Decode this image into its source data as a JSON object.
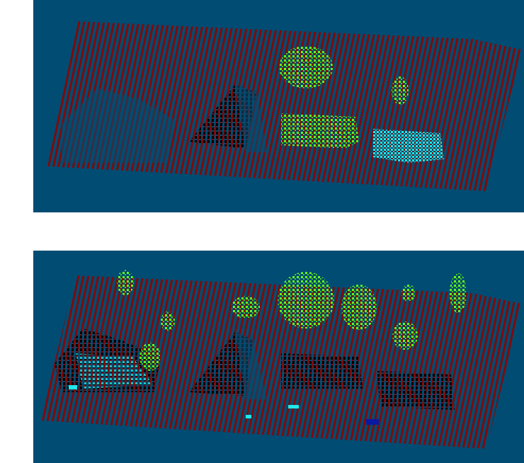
{
  "figure": {
    "panels": [
      {
        "id": "top",
        "description_name": "point-cloud-panel-top",
        "background_color": "#004c73",
        "ground_color": "#7f0a0a",
        "object_colors": [
          "#66ff1a",
          "#33dd33",
          "#20e8e8",
          "#000000"
        ]
      },
      {
        "id": "bottom",
        "description_name": "point-cloud-panel-bottom",
        "background_color": "#004c73",
        "ground_color": "#7f0a0a",
        "object_colors": [
          "#66ff1a",
          "#33dd33",
          "#20e8e8",
          "#000000",
          "#0a1aa0"
        ]
      }
    ]
  }
}
